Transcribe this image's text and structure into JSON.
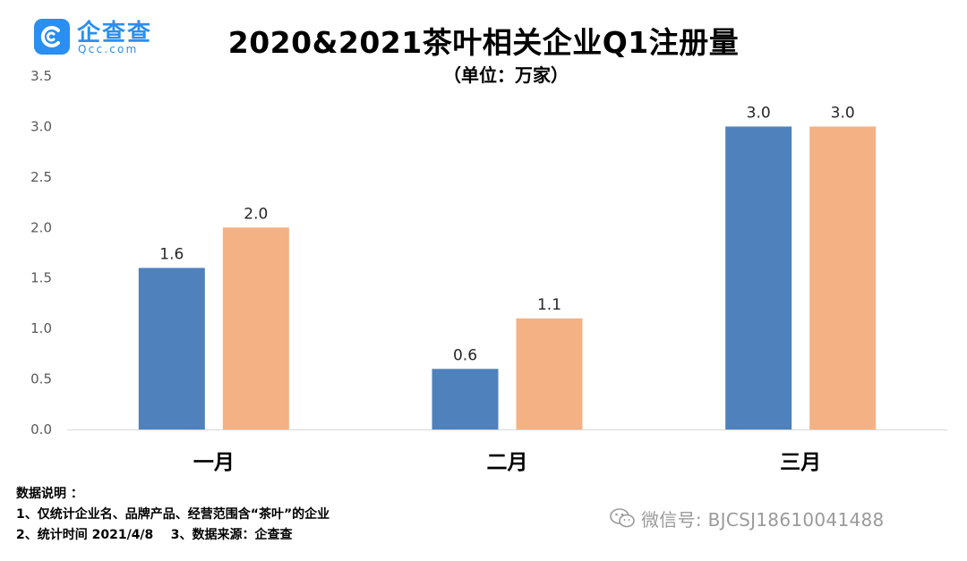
{
  "logo": {
    "name": "企查查",
    "domain": "Qcc.com"
  },
  "chart_data": {
    "type": "bar",
    "title": "2020&2021茶叶相关企业Q1注册量",
    "subtitle": "（单位：万家）",
    "categories": [
      "一月",
      "二月",
      "三月"
    ],
    "series": [
      {
        "values": [
          1.6,
          0.6,
          3.0
        ],
        "color": "#4f81bd"
      },
      {
        "values": [
          2.0,
          1.1,
          3.0
        ],
        "color": "#f4b183"
      }
    ],
    "data_labels": [
      [
        "1.6",
        "0.6",
        "3.0"
      ],
      [
        "2.0",
        "1.1",
        "3.0"
      ]
    ],
    "ylim": [
      0,
      3.5
    ],
    "yticks": [
      "0.0",
      "0.5",
      "1.0",
      "1.5",
      "2.0",
      "2.5",
      "3.0",
      "3.5"
    ],
    "grid": false,
    "legend": "none"
  },
  "notes": {
    "heading": "数据说明 ：",
    "line1": "1、仅统计企业名、品牌产品、经营范围含“茶叶”的企业",
    "line2": "2、统计时间 2021/4/8    3、数据来源：企查查"
  },
  "watermark": {
    "text": "微信号: BJCSJ18610041488",
    "icon": "wechat-icon"
  }
}
